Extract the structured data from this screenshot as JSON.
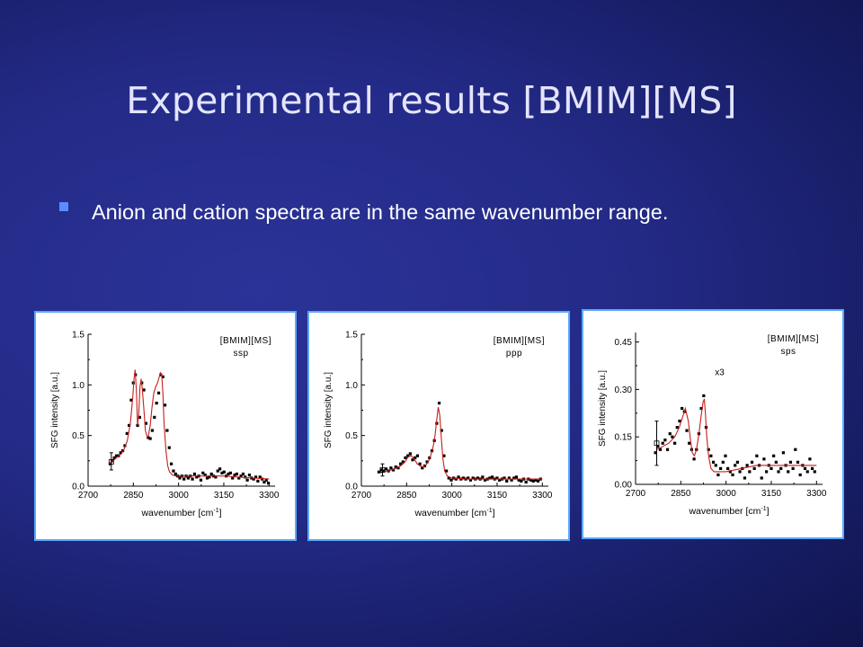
{
  "slide": {
    "title": "Experimental results [BMIM][MS]",
    "bullet": "Anion and cation spectra are in the same wavenumber range."
  },
  "colors": {
    "fit_line": "#c81e1e",
    "points": "#000000",
    "panel_border": "#5aa8ff"
  },
  "chart_data": [
    {
      "type": "scatter",
      "legend": [
        "[BMIM][MS]",
        "ssp"
      ],
      "annotation": "",
      "xlabel": "wavenumber [cm-1]",
      "ylabel": "SFG intensity [a.u.]",
      "xlim": [
        2700,
        3320
      ],
      "ylim": [
        0.0,
        1.5
      ],
      "xticks": [
        2700,
        2850,
        3000,
        3150,
        3300
      ],
      "yticks": [
        0.0,
        0.5,
        1.0,
        1.5
      ],
      "ytick_labels": [
        "0.0",
        "0.5",
        "1.0",
        "1.5"
      ],
      "series": [
        {
          "kind": "points",
          "x": [
            2773,
            2780,
            2787,
            2794,
            2801,
            2808,
            2815,
            2822,
            2829,
            2836,
            2843,
            2850,
            2857,
            2864,
            2871,
            2878,
            2885,
            2892,
            2899,
            2906,
            2913,
            2920,
            2927,
            2934,
            2941,
            2948,
            2955,
            2962,
            2969,
            2976,
            2983,
            2990,
            2997,
            3004,
            3011,
            3018,
            3025,
            3032,
            3039,
            3046,
            3053,
            3060,
            3067,
            3074,
            3081,
            3088,
            3095,
            3102,
            3109,
            3116,
            3123,
            3130,
            3137,
            3144,
            3151,
            3158,
            3165,
            3172,
            3179,
            3186,
            3193,
            3200,
            3207,
            3214,
            3221,
            3228,
            3235,
            3242,
            3249,
            3256,
            3263,
            3270,
            3277,
            3284,
            3291,
            3298
          ],
          "y": [
            0.22,
            0.25,
            0.28,
            0.3,
            0.3,
            0.33,
            0.35,
            0.4,
            0.52,
            0.6,
            0.85,
            1.02,
            1.1,
            0.6,
            0.68,
            1.02,
            0.95,
            0.62,
            0.48,
            0.47,
            0.55,
            0.68,
            0.82,
            0.92,
            1.1,
            1.08,
            0.8,
            0.55,
            0.38,
            0.22,
            0.15,
            0.12,
            0.1,
            0.08,
            0.1,
            0.07,
            0.1,
            0.08,
            0.1,
            0.07,
            0.12,
            0.09,
            0.1,
            0.06,
            0.13,
            0.11,
            0.08,
            0.09,
            0.12,
            0.1,
            0.09,
            0.15,
            0.17,
            0.13,
            0.14,
            0.1,
            0.12,
            0.13,
            0.08,
            0.11,
            0.12,
            0.08,
            0.1,
            0.12,
            0.09,
            0.06,
            0.11,
            0.08,
            0.07,
            0.09,
            0.05,
            0.09,
            0.07,
            0.04,
            0.06,
            0.03
          ]
        },
        {
          "kind": "fit",
          "x": [
            2770,
            2790,
            2810,
            2820,
            2830,
            2840,
            2848,
            2852,
            2856,
            2860,
            2864,
            2868,
            2872,
            2876,
            2880,
            2886,
            2890,
            2896,
            2900,
            2906,
            2912,
            2918,
            2924,
            2930,
            2936,
            2940,
            2944,
            2948,
            2952,
            2958,
            2964,
            2970,
            2980,
            2990,
            3000,
            3020,
            3050,
            3100,
            3150,
            3200,
            3250,
            3300
          ],
          "y": [
            0.22,
            0.27,
            0.32,
            0.37,
            0.45,
            0.62,
            0.88,
            1.05,
            1.15,
            0.95,
            0.6,
            0.72,
            0.98,
            1.06,
            0.95,
            0.72,
            0.55,
            0.48,
            0.5,
            0.6,
            0.78,
            0.92,
            0.98,
            1.02,
            1.08,
            1.12,
            1.1,
            0.92,
            0.62,
            0.35,
            0.2,
            0.14,
            0.11,
            0.1,
            0.1,
            0.1,
            0.1,
            0.1,
            0.1,
            0.09,
            0.08,
            0.07
          ]
        },
        {
          "kind": "error_bar",
          "x": [
            2777
          ],
          "y": [
            0.24
          ],
          "low": [
            0.16
          ],
          "high": [
            0.33
          ]
        }
      ]
    },
    {
      "type": "scatter",
      "legend": [
        "[BMIM][MS]",
        "ppp"
      ],
      "annotation": "",
      "xlabel": "wavenumber [cm-1]",
      "ylabel": "SFG intensity [a.u.]",
      "xlim": [
        2700,
        3320
      ],
      "ylim": [
        0.0,
        1.5
      ],
      "xticks": [
        2700,
        2850,
        3000,
        3150,
        3300
      ],
      "yticks": [
        0.0,
        0.5,
        1.0,
        1.5
      ],
      "ytick_labels": [
        "0.0",
        "0.5",
        "1.0",
        "1.5"
      ],
      "series": [
        {
          "kind": "points",
          "x": [
            2758,
            2766,
            2774,
            2782,
            2790,
            2798,
            2806,
            2814,
            2822,
            2830,
            2838,
            2846,
            2854,
            2862,
            2870,
            2878,
            2886,
            2894,
            2902,
            2910,
            2918,
            2926,
            2934,
            2942,
            2950,
            2958,
            2966,
            2974,
            2982,
            2990,
            2998,
            3006,
            3014,
            3022,
            3030,
            3038,
            3046,
            3054,
            3062,
            3070,
            3078,
            3086,
            3094,
            3102,
            3110,
            3118,
            3126,
            3134,
            3142,
            3150,
            3158,
            3166,
            3174,
            3182,
            3190,
            3198,
            3206,
            3214,
            3222,
            3230,
            3238,
            3246,
            3254,
            3262,
            3270,
            3278,
            3286,
            3294
          ],
          "y": [
            0.14,
            0.16,
            0.15,
            0.17,
            0.15,
            0.18,
            0.16,
            0.19,
            0.18,
            0.22,
            0.24,
            0.28,
            0.3,
            0.32,
            0.26,
            0.28,
            0.3,
            0.22,
            0.18,
            0.2,
            0.24,
            0.28,
            0.35,
            0.45,
            0.62,
            0.82,
            0.55,
            0.3,
            0.15,
            0.08,
            0.06,
            0.08,
            0.07,
            0.09,
            0.07,
            0.08,
            0.07,
            0.08,
            0.06,
            0.08,
            0.07,
            0.08,
            0.07,
            0.09,
            0.06,
            0.07,
            0.08,
            0.09,
            0.07,
            0.08,
            0.06,
            0.07,
            0.08,
            0.05,
            0.08,
            0.06,
            0.08,
            0.09,
            0.06,
            0.05,
            0.07,
            0.04,
            0.07,
            0.06,
            0.05,
            0.06,
            0.05,
            0.07
          ]
        },
        {
          "kind": "fit",
          "x": [
            2760,
            2790,
            2810,
            2830,
            2845,
            2855,
            2865,
            2875,
            2885,
            2895,
            2905,
            2915,
            2925,
            2935,
            2940,
            2945,
            2950,
            2955,
            2960,
            2965,
            2970,
            2976,
            2985,
            3000,
            3050,
            3100,
            3150,
            3200,
            3250,
            3300
          ],
          "y": [
            0.13,
            0.15,
            0.17,
            0.2,
            0.24,
            0.29,
            0.3,
            0.27,
            0.22,
            0.2,
            0.19,
            0.21,
            0.26,
            0.35,
            0.42,
            0.52,
            0.66,
            0.78,
            0.7,
            0.48,
            0.28,
            0.15,
            0.1,
            0.08,
            0.07,
            0.07,
            0.07,
            0.07,
            0.07,
            0.07
          ]
        },
        {
          "kind": "error_bar",
          "x": [
            2770
          ],
          "y": [
            0.16
          ],
          "low": [
            0.1
          ],
          "high": [
            0.22
          ]
        }
      ]
    },
    {
      "type": "scatter",
      "legend": [
        "[BMIM][MS]",
        "sps"
      ],
      "annotation": "x3",
      "xlabel": "wavenumber [cm-1]",
      "ylabel": "SFG intensity [a.u.]",
      "xlim": [
        2700,
        3320
      ],
      "ylim": [
        0.0,
        0.48
      ],
      "xticks": [
        2700,
        2850,
        3000,
        3150,
        3300
      ],
      "yticks": [
        0.0,
        0.15,
        0.3,
        0.45
      ],
      "ytick_labels": [
        "0.00",
        "0.15",
        "0.30",
        "0.45"
      ],
      "series": [
        {
          "kind": "points",
          "x": [
            2766,
            2774,
            2782,
            2790,
            2798,
            2806,
            2814,
            2822,
            2830,
            2838,
            2846,
            2854,
            2862,
            2870,
            2878,
            2886,
            2894,
            2902,
            2910,
            2918,
            2926,
            2934,
            2942,
            2950,
            2958,
            2966,
            2974,
            2982,
            2990,
            2998,
            3006,
            3014,
            3022,
            3030,
            3038,
            3046,
            3054,
            3062,
            3070,
            3078,
            3086,
            3094,
            3102,
            3110,
            3118,
            3126,
            3134,
            3142,
            3150,
            3158,
            3166,
            3174,
            3182,
            3190,
            3198,
            3206,
            3214,
            3222,
            3230,
            3238,
            3246,
            3254,
            3262,
            3270,
            3278,
            3286,
            3294
          ],
          "y": [
            0.1,
            0.12,
            0.11,
            0.13,
            0.14,
            0.11,
            0.16,
            0.15,
            0.13,
            0.18,
            0.2,
            0.24,
            0.23,
            0.17,
            0.13,
            0.11,
            0.08,
            0.11,
            0.16,
            0.24,
            0.28,
            0.18,
            0.11,
            0.09,
            0.07,
            0.06,
            0.03,
            0.05,
            0.07,
            0.09,
            0.05,
            0.04,
            0.03,
            0.06,
            0.07,
            0.04,
            0.05,
            0.02,
            0.06,
            0.04,
            0.07,
            0.05,
            0.09,
            0.06,
            0.02,
            0.08,
            0.04,
            0.06,
            0.05,
            0.09,
            0.07,
            0.04,
            0.05,
            0.1,
            0.06,
            0.04,
            0.07,
            0.05,
            0.11,
            0.07,
            0.03,
            0.06,
            0.05,
            0.04,
            0.08,
            0.05,
            0.04
          ]
        },
        {
          "kind": "fit",
          "x": [
            2770,
            2790,
            2810,
            2830,
            2845,
            2855,
            2865,
            2875,
            2882,
            2888,
            2895,
            2902,
            2910,
            2918,
            2924,
            2928,
            2932,
            2936,
            2942,
            2950,
            2960,
            2975,
            3000,
            3050,
            3100,
            3150,
            3200,
            3250,
            3300
          ],
          "y": [
            0.11,
            0.12,
            0.13,
            0.15,
            0.18,
            0.21,
            0.24,
            0.2,
            0.14,
            0.1,
            0.09,
            0.11,
            0.16,
            0.22,
            0.26,
            0.27,
            0.22,
            0.15,
            0.09,
            0.05,
            0.04,
            0.04,
            0.04,
            0.05,
            0.06,
            0.06,
            0.06,
            0.06,
            0.06
          ]
        },
        {
          "kind": "error_bar",
          "x": [
            2770
          ],
          "y": [
            0.13
          ],
          "low": [
            0.06
          ],
          "high": [
            0.2
          ]
        }
      ]
    }
  ]
}
